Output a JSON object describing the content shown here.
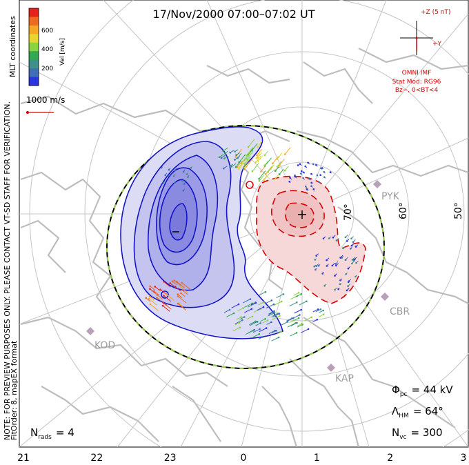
{
  "title": "17/Nov/2000 07:00–07:02 UT",
  "side_note": {
    "line1": "NOTE: FOR PREVIEW PURPOSES ONLY. PLEASE CONTACT VT-SD STAFF FOR VERIFICATION.",
    "line2": "FitOrder: 8, mapEX format",
    "coords": "MLT coordinates"
  },
  "colorbar": {
    "label": "Vel [m/s]",
    "ticks": [
      "600",
      "400",
      "200"
    ],
    "colors": [
      "#e8201c",
      "#ee6a1c",
      "#f5a623",
      "#e8d62e",
      "#8ad33e",
      "#32a852",
      "#3f8f8a",
      "#3f6fb4",
      "#2a35e0"
    ]
  },
  "reference_vector": {
    "label": "1000 m/s",
    "color": "#d60000"
  },
  "imf_panel": {
    "z_label": "+Z (5 nT)",
    "y_label": "+Y",
    "source": "OMNI IMF",
    "model_line1": "Stat Mod: RG96",
    "model_line2": "Bz−, 0<BT<4"
  },
  "stations": [
    "PYK",
    "CBR",
    "KOD",
    "KAP"
  ],
  "stats": {
    "phi_pc": {
      "symbol": "Φ",
      "sub": "pc",
      "value": "= 44 kV"
    },
    "lambda_hm": {
      "symbol": "Λ",
      "sub": "HM",
      "value": "= 64°"
    },
    "n_vc": {
      "symbol": "N",
      "sub": "vc",
      "value": "= 300"
    },
    "n_rads": {
      "symbol": "N",
      "sub": "rads",
      "value": "= 4"
    }
  },
  "chart_data": {
    "type": "polar-convection-map",
    "title": "17/Nov/2000 07:00–07:02 UT",
    "coordinates": "MLT",
    "mlt_ticks": [
      "21",
      "22",
      "23",
      "0",
      "1",
      "2",
      "3"
    ],
    "latitude_labels": [
      "70°",
      "60°",
      "50°"
    ],
    "velocity_scale": {
      "label": "Vel [m/s]",
      "ticks": [
        200,
        400,
        600
      ]
    },
    "potential_cells": [
      {
        "sign": "negative",
        "marker": "−",
        "contour_color": "#1414c8"
      },
      {
        "sign": "positive",
        "marker": "+",
        "contour_color": "#d60000"
      }
    ],
    "cross_polar_cap_potential_kV": 44,
    "heppner_maynard_boundary_deg": 64,
    "n_vectors": 300,
    "n_radars": 4
  }
}
